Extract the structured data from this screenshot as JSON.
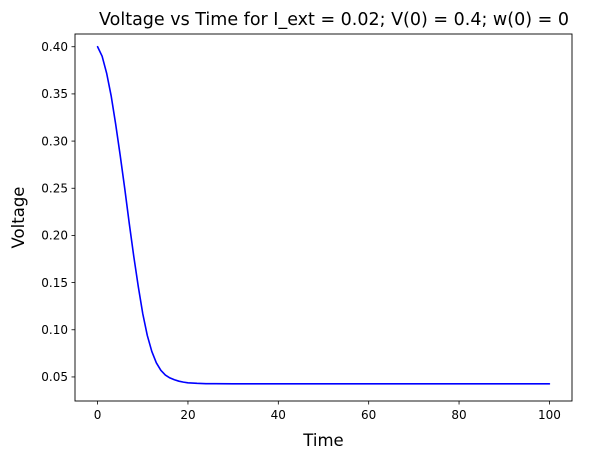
{
  "chart_data": {
    "type": "line",
    "title": "Voltage vs Time for I_ext = 0.02; V(0) = 0.4; w(0) = 0",
    "xlabel": "Time",
    "ylabel": "Voltage",
    "xlim": [
      -5,
      105
    ],
    "ylim": [
      0.0245,
      0.4135
    ],
    "xticks": [
      0,
      20,
      40,
      60,
      80,
      100
    ],
    "yticks": [
      0.05,
      0.1,
      0.15,
      0.2,
      0.25,
      0.3,
      0.35,
      0.4
    ],
    "grid": false,
    "series": [
      {
        "color": "#0000ff",
        "x": [
          0,
          1,
          2,
          3,
          4,
          5,
          6,
          7,
          8,
          9,
          10,
          11,
          12,
          13,
          14,
          15,
          16,
          17,
          18,
          19,
          20,
          22,
          24,
          26,
          30,
          40,
          50,
          60,
          70,
          80,
          90,
          100
        ],
        "y": [
          0.4,
          0.39,
          0.372,
          0.348,
          0.318,
          0.285,
          0.25,
          0.213,
          0.178,
          0.146,
          0.117,
          0.094,
          0.077,
          0.065,
          0.057,
          0.052,
          0.049,
          0.047,
          0.0455,
          0.0445,
          0.0438,
          0.0432,
          0.0429,
          0.0428,
          0.0427,
          0.0427,
          0.0427,
          0.0427,
          0.0427,
          0.0427,
          0.0427,
          0.0427
        ]
      }
    ]
  }
}
